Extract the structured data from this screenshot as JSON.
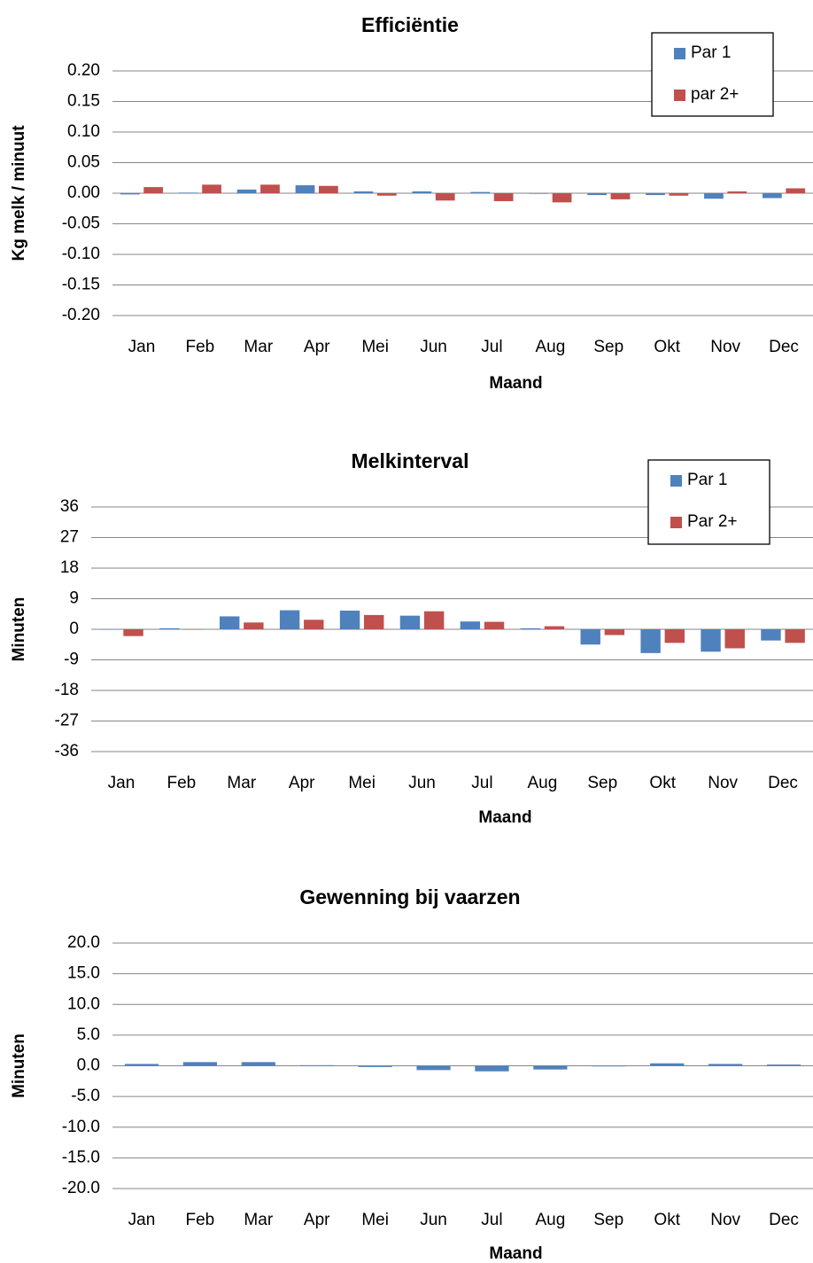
{
  "chart_data": [
    {
      "type": "bar",
      "title": "Efficiëntie",
      "xlabel": "Maand",
      "ylabel": "Kg melk / minuut",
      "categories": [
        "Jan",
        "Feb",
        "Mar",
        "Apr",
        "Mei",
        "Jun",
        "Jul",
        "Aug",
        "Sep",
        "Okt",
        "Nov",
        "Dec"
      ],
      "series": [
        {
          "name": "Par 1",
          "color": "#4f81bd",
          "values": [
            -0.002,
            0.001,
            0.006,
            0.013,
            0.003,
            0.003,
            0.002,
            -0.001,
            -0.003,
            -0.003,
            -0.009,
            -0.008
          ]
        },
        {
          "name": "par 2+",
          "color": "#c0504d",
          "values": [
            0.01,
            0.014,
            0.014,
            0.012,
            -0.004,
            -0.012,
            -0.013,
            -0.015,
            -0.01,
            -0.004,
            0.003,
            0.008
          ]
        }
      ],
      "ylim": [
        -0.2,
        0.2
      ],
      "yticks": [
        {
          "value": 0.2,
          "label": "0.20"
        },
        0.15,
        {
          "value": 0.1,
          "label": "0.10"
        },
        0.05,
        {
          "value": 0,
          "label": "0.00"
        },
        -0.05,
        {
          "value": -0.1,
          "label": "-0.10"
        },
        -0.15,
        {
          "value": -0.2,
          "label": "-0.20"
        }
      ],
      "grid": true,
      "legend": "top-right"
    },
    {
      "type": "bar",
      "title": "Melkinterval",
      "xlabel": "Maand",
      "ylabel": "Minuten",
      "categories": [
        "Jan",
        "Feb",
        "Mar",
        "Apr",
        "Mei",
        "Jun",
        "Jul",
        "Aug",
        "Sep",
        "Okt",
        "Nov",
        "Dec"
      ],
      "series": [
        {
          "name": "Par 1",
          "color": "#4f81bd",
          "values": [
            0,
            0.3,
            3.8,
            5.6,
            5.5,
            4,
            2.3,
            0.3,
            -4.5,
            -7,
            -6.6,
            -3.3
          ]
        },
        {
          "name": "Par 2+",
          "color": "#c0504d",
          "values": [
            -2,
            0,
            2,
            2.8,
            4.2,
            5.3,
            2.2,
            0.9,
            -1.7,
            -4,
            -5.6,
            -4
          ]
        }
      ],
      "ylim": [
        -36,
        36
      ],
      "yticks": [
        36,
        27,
        18,
        9,
        0,
        -9,
        -18,
        -27,
        -36
      ],
      "grid": true,
      "legend": "top-right"
    },
    {
      "type": "bar",
      "title": "Gewenning bij vaarzen",
      "xlabel": "Maand",
      "ylabel": "Minuten",
      "categories": [
        "Jan",
        "Feb",
        "Mar",
        "Apr",
        "Mei",
        "Jun",
        "Jul",
        "Aug",
        "Sep",
        "Okt",
        "Nov",
        "Dec"
      ],
      "series": [
        {
          "color": "#4f81bd",
          "values": [
            0.3,
            0.6,
            0.6,
            0.1,
            -0.2,
            -0.7,
            -0.9,
            -0.6,
            -0.1,
            0.4,
            0.3,
            0.2
          ]
        }
      ],
      "ylim": [
        -20,
        20
      ],
      "yticks": [
        {
          "value": 20,
          "label": "20.0"
        },
        {
          "value": 15,
          "label": "15.0"
        },
        {
          "value": 10,
          "label": "10.0"
        },
        {
          "value": 5,
          "label": "5.0"
        },
        {
          "value": 0,
          "label": "0.0"
        },
        {
          "value": -5,
          "label": "-5.0"
        },
        {
          "value": -10,
          "label": "-10.0"
        },
        {
          "value": -15,
          "label": "-15.0"
        },
        {
          "value": -20,
          "label": "-20.0"
        }
      ],
      "grid": true
    }
  ]
}
